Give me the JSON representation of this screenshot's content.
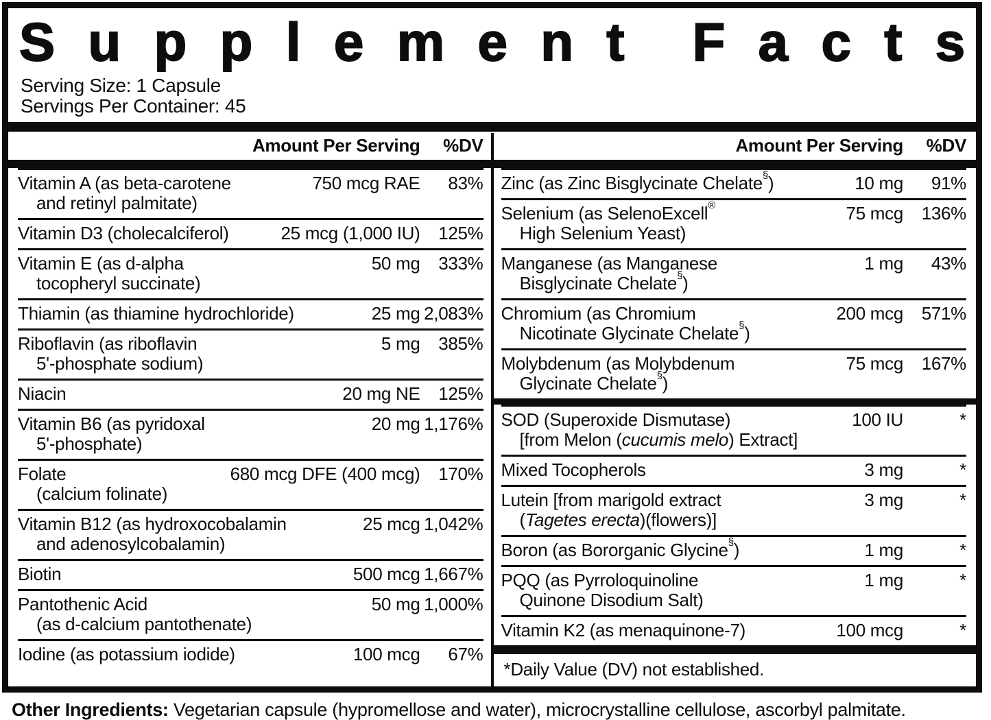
{
  "title": "Supplement Facts",
  "serving": {
    "size_label": "Serving Size: 1 Capsule",
    "per_container_label": "Servings Per Container: 45"
  },
  "table": {
    "columns": [
      {
        "header": {
          "amount": "Amount Per Serving",
          "dv": "%DV"
        },
        "sections": [
          {
            "rows": [
              {
                "name": "Vitamin A (as beta-carotene\nand retinyl palmitate)",
                "amount": "750 mcg RAE",
                "dv": "83%"
              },
              {
                "name": "Vitamin D3 (cholecalciferol)",
                "amount": "25 mcg (1,000 IU)",
                "dv": "125%"
              },
              {
                "name": "Vitamin E (as d-alpha\ntocopheryl succinate)",
                "amount": "50 mg",
                "dv": "333%"
              },
              {
                "name": "Thiamin (as thiamine hydrochloride)",
                "amount": "25 mg",
                "dv": "2,083%"
              },
              {
                "name": "Riboflavin (as riboflavin\n5'-phosphate sodium)",
                "amount": "5 mg",
                "dv": "385%"
              },
              {
                "name": "Niacin",
                "amount": "20 mg NE",
                "dv": "125%"
              },
              {
                "name": "Vitamin B6 (as pyridoxal\n5'-phosphate)",
                "amount": "20 mg",
                "dv": "1,176%"
              },
              {
                "name": "Folate\n(calcium folinate)",
                "amount": "680 mcg DFE (400 mcg)",
                "dv": "170%"
              },
              {
                "name": "Vitamin B12 (as hydroxocobalamin\nand adenosylcobalamin)",
                "amount": "25 mcg",
                "dv": "1,042%"
              },
              {
                "name": "Biotin",
                "amount": "500 mcg",
                "dv": "1,667%"
              },
              {
                "name": "Pantothenic Acid\n(as d-calcium pantothenate)",
                "amount": "50 mg",
                "dv": "1,000%"
              },
              {
                "name": "Iodine (as potassium iodide)",
                "amount": "100 mcg",
                "dv": "67%"
              }
            ]
          }
        ]
      },
      {
        "header": {
          "amount": "Amount Per Serving",
          "dv": "%DV"
        },
        "sections": [
          {
            "rows": [
              {
                "name": "Zinc (as Zinc Bisglycinate Chelate^§^)",
                "amount": "10 mg",
                "dv": "91%"
              },
              {
                "name": "Selenium (as SelenoExcell^®^\nHigh Selenium Yeast)",
                "amount": "75 mcg",
                "dv": "136%"
              },
              {
                "name": "Manganese (as Manganese\nBisglycinate Chelate^§^)",
                "amount": "1 mg",
                "dv": "43%"
              },
              {
                "name": "Chromium (as Chromium\nNicotinate Glycinate Chelate^§^)",
                "amount": "200 mcg",
                "dv": "571%"
              },
              {
                "name": "Molybdenum (as Molybdenum\nGlycinate Chelate^§^)",
                "amount": "75 mcg",
                "dv": "167%"
              }
            ]
          },
          {
            "rows": [
              {
                "name": "SOD (Superoxide Dismutase)\n[from Melon (_cucumis melo_) Extract]",
                "amount": "100 IU",
                "dv": "*"
              },
              {
                "name": "Mixed Tocopherols",
                "amount": "3 mg",
                "dv": "*"
              },
              {
                "name": "Lutein [from marigold extract\n(_Tagetes erecta_)(flowers)]",
                "amount": "3 mg",
                "dv": "*"
              },
              {
                "name": "Boron (as Bororganic Glycine^§^)",
                "amount": "1 mg",
                "dv": "*"
              },
              {
                "name": "PQQ (as Pyrroloquinoline\nQuinone Disodium Salt)",
                "amount": "1 mg",
                "dv": "*"
              },
              {
                "name": "Vitamin K2 (as menaquinone-7)",
                "amount": "100 mcg",
                "dv": "*"
              }
            ]
          }
        ],
        "footnote": "*Daily Value (DV) not established."
      }
    ]
  },
  "other_ingredients": {
    "label": "Other Ingredients:",
    "text": " Vegetarian capsule (hypromellose and water), microcrystalline cellulose, ascorbyl palmitate."
  },
  "colors": {
    "ink": "#0d0d0d",
    "paper": "#ffffff"
  }
}
